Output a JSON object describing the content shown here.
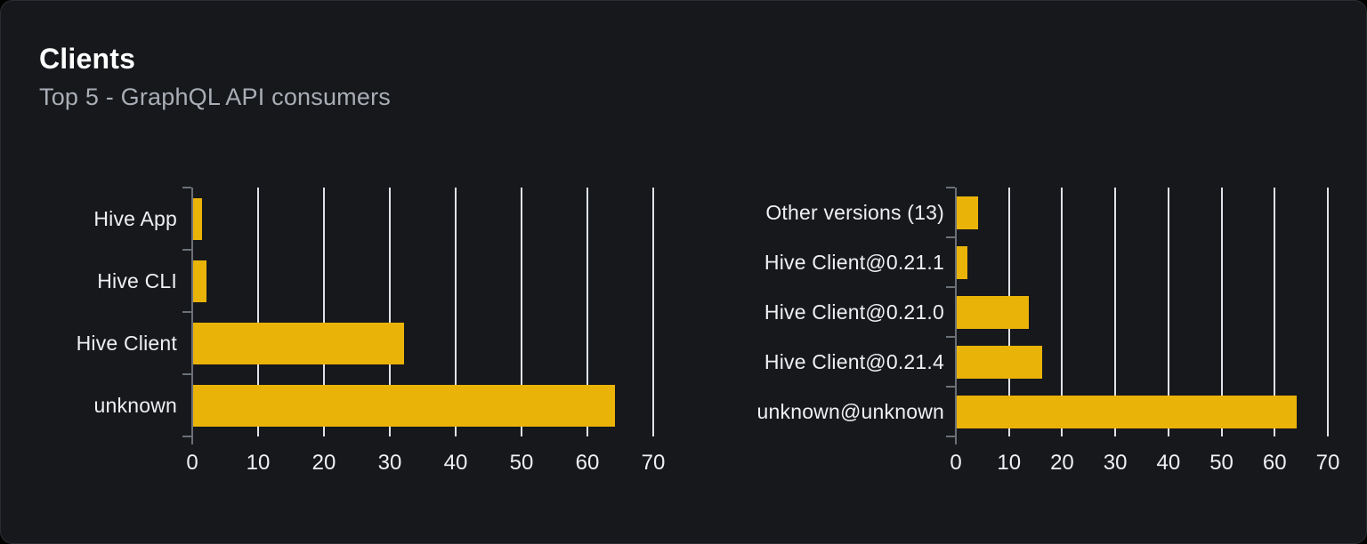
{
  "header": {
    "title": "Clients",
    "subtitle": "Top 5 - GraphQL API consumers"
  },
  "colors": {
    "card_background": "#17181c",
    "card_border": "#2a2d33",
    "title_text": "#ffffff",
    "subtitle_text": "#a9aeb6",
    "bar": "#eab308",
    "grid_line": "#dfe3e9",
    "axis_line": "#6b7078",
    "label_text": "#eef0f3"
  },
  "chart_data": [
    {
      "type": "bar",
      "orientation": "horizontal",
      "categories": [
        "Hive App",
        "Hive CLI",
        "Hive Client",
        "unknown"
      ],
      "values": [
        1.4,
        2,
        32,
        64
      ],
      "xlim": [
        0,
        70
      ],
      "xticks": [
        0,
        10,
        20,
        30,
        40,
        50,
        60,
        70
      ],
      "grid": true,
      "legend": "none",
      "bar_color": "#eab308"
    },
    {
      "type": "bar",
      "orientation": "horizontal",
      "categories": [
        "Other versions (13)",
        "Hive Client@0.21.1",
        "Hive Client@0.21.0",
        "Hive Client@0.21.4",
        "unknown@unknown"
      ],
      "values": [
        4,
        2,
        13.5,
        16,
        64
      ],
      "xlim": [
        0,
        70
      ],
      "xticks": [
        0,
        10,
        20,
        30,
        40,
        50,
        60,
        70
      ],
      "grid": true,
      "legend": "none",
      "bar_color": "#eab308"
    }
  ]
}
